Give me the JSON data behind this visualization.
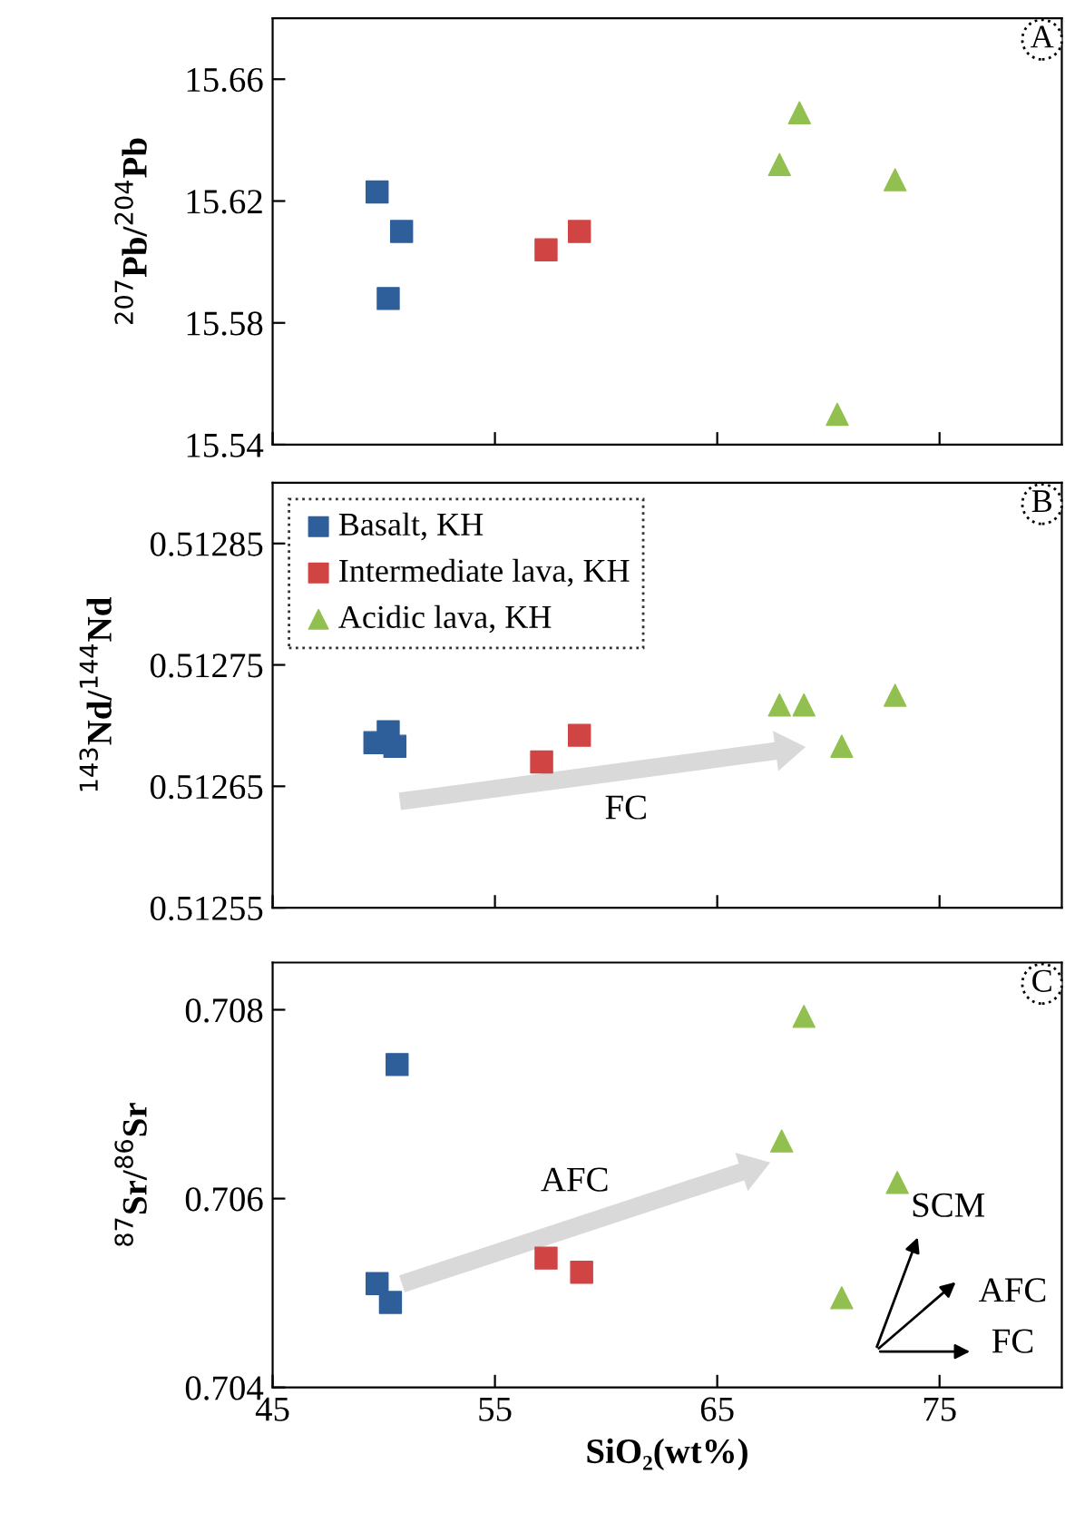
{
  "chart_data": [
    {
      "type": "scatter",
      "ylabel": "$^{207}$Pb/$^{204}$Pb",
      "xlim": [
        45,
        80.5
      ],
      "xticks": [
        45,
        55,
        65,
        75
      ],
      "ylim": [
        15.54,
        15.68
      ],
      "yticks": [
        15.54,
        15.58,
        15.62,
        15.66
      ],
      "tick_labels": "y",
      "grid": false,
      "legend": false,
      "annotations": [
        "A"
      ],
      "series": [
        {
          "marker": "square",
          "color": "#2e5f9a",
          "x": [
            49.7,
            50.8,
            50.2
          ],
          "values": [
            15.623,
            15.61,
            15.588
          ]
        },
        {
          "marker": "square",
          "color": "#d04444",
          "x": [
            57.3,
            58.8
          ],
          "values": [
            15.604,
            15.61
          ]
        },
        {
          "marker": "triangle",
          "color": "#92c050",
          "x": [
            67.8,
            68.7,
            73.0,
            70.4
          ],
          "values": [
            15.632,
            15.649,
            15.627,
            15.55
          ]
        }
      ]
    },
    {
      "type": "scatter",
      "ylabel": "$^{143}$Nd/$^{144}$Nd",
      "xlim": [
        45,
        80.5
      ],
      "xticks": [
        45,
        55,
        65,
        75
      ],
      "ylim": [
        0.51255,
        0.5129
      ],
      "yticks": [
        0.51255,
        0.51265,
        0.51275,
        0.51285
      ],
      "tick_labels": "y",
      "grid": false,
      "legend": "top left",
      "annotations": [
        "B",
        "FC"
      ],
      "series": [
        {
          "name": "Basalt, KH",
          "marker": "square",
          "color": "#2e5f9a",
          "x": [
            49.6,
            50.2,
            50.5
          ],
          "values": [
            0.512686,
            0.512695,
            0.512683
          ]
        },
        {
          "name": "Intermediate lava, KH",
          "marker": "square",
          "color": "#d04444",
          "x": [
            57.1,
            58.8
          ],
          "values": [
            0.51267,
            0.512692
          ]
        },
        {
          "name": "Acidic lava, KH",
          "marker": "triangle",
          "color": "#92c050",
          "x": [
            67.8,
            68.9,
            73.0,
            70.6
          ],
          "values": [
            0.512717,
            0.512717,
            0.512725,
            0.512683
          ]
        }
      ]
    },
    {
      "type": "scatter",
      "xlabel": "SiO₂(wt%)",
      "ylabel": "$^{87}$Sr/$^{86}$Sr",
      "xlim": [
        45,
        80.5
      ],
      "xticks": [
        45,
        55,
        65,
        75
      ],
      "ylim": [
        0.704,
        0.7085
      ],
      "yticks": [
        0.704,
        0.706,
        0.708
      ],
      "grid": false,
      "legend": false,
      "annotations": [
        "C",
        "AFC",
        "SCM",
        "AFC",
        "FC"
      ],
      "series": [
        {
          "marker": "square",
          "color": "#2e5f9a",
          "x": [
            50.6,
            49.7,
            50.3
          ],
          "values": [
            0.70742,
            0.7051,
            0.7049
          ]
        },
        {
          "marker": "square",
          "color": "#d04444",
          "x": [
            57.3,
            58.9
          ],
          "values": [
            0.70537,
            0.70522
          ]
        },
        {
          "marker": "triangle",
          "color": "#92c050",
          "x": [
            68.9,
            67.9,
            73.1,
            70.6
          ],
          "values": [
            0.70793,
            0.70661,
            0.70617,
            0.70495
          ]
        }
      ]
    }
  ]
}
